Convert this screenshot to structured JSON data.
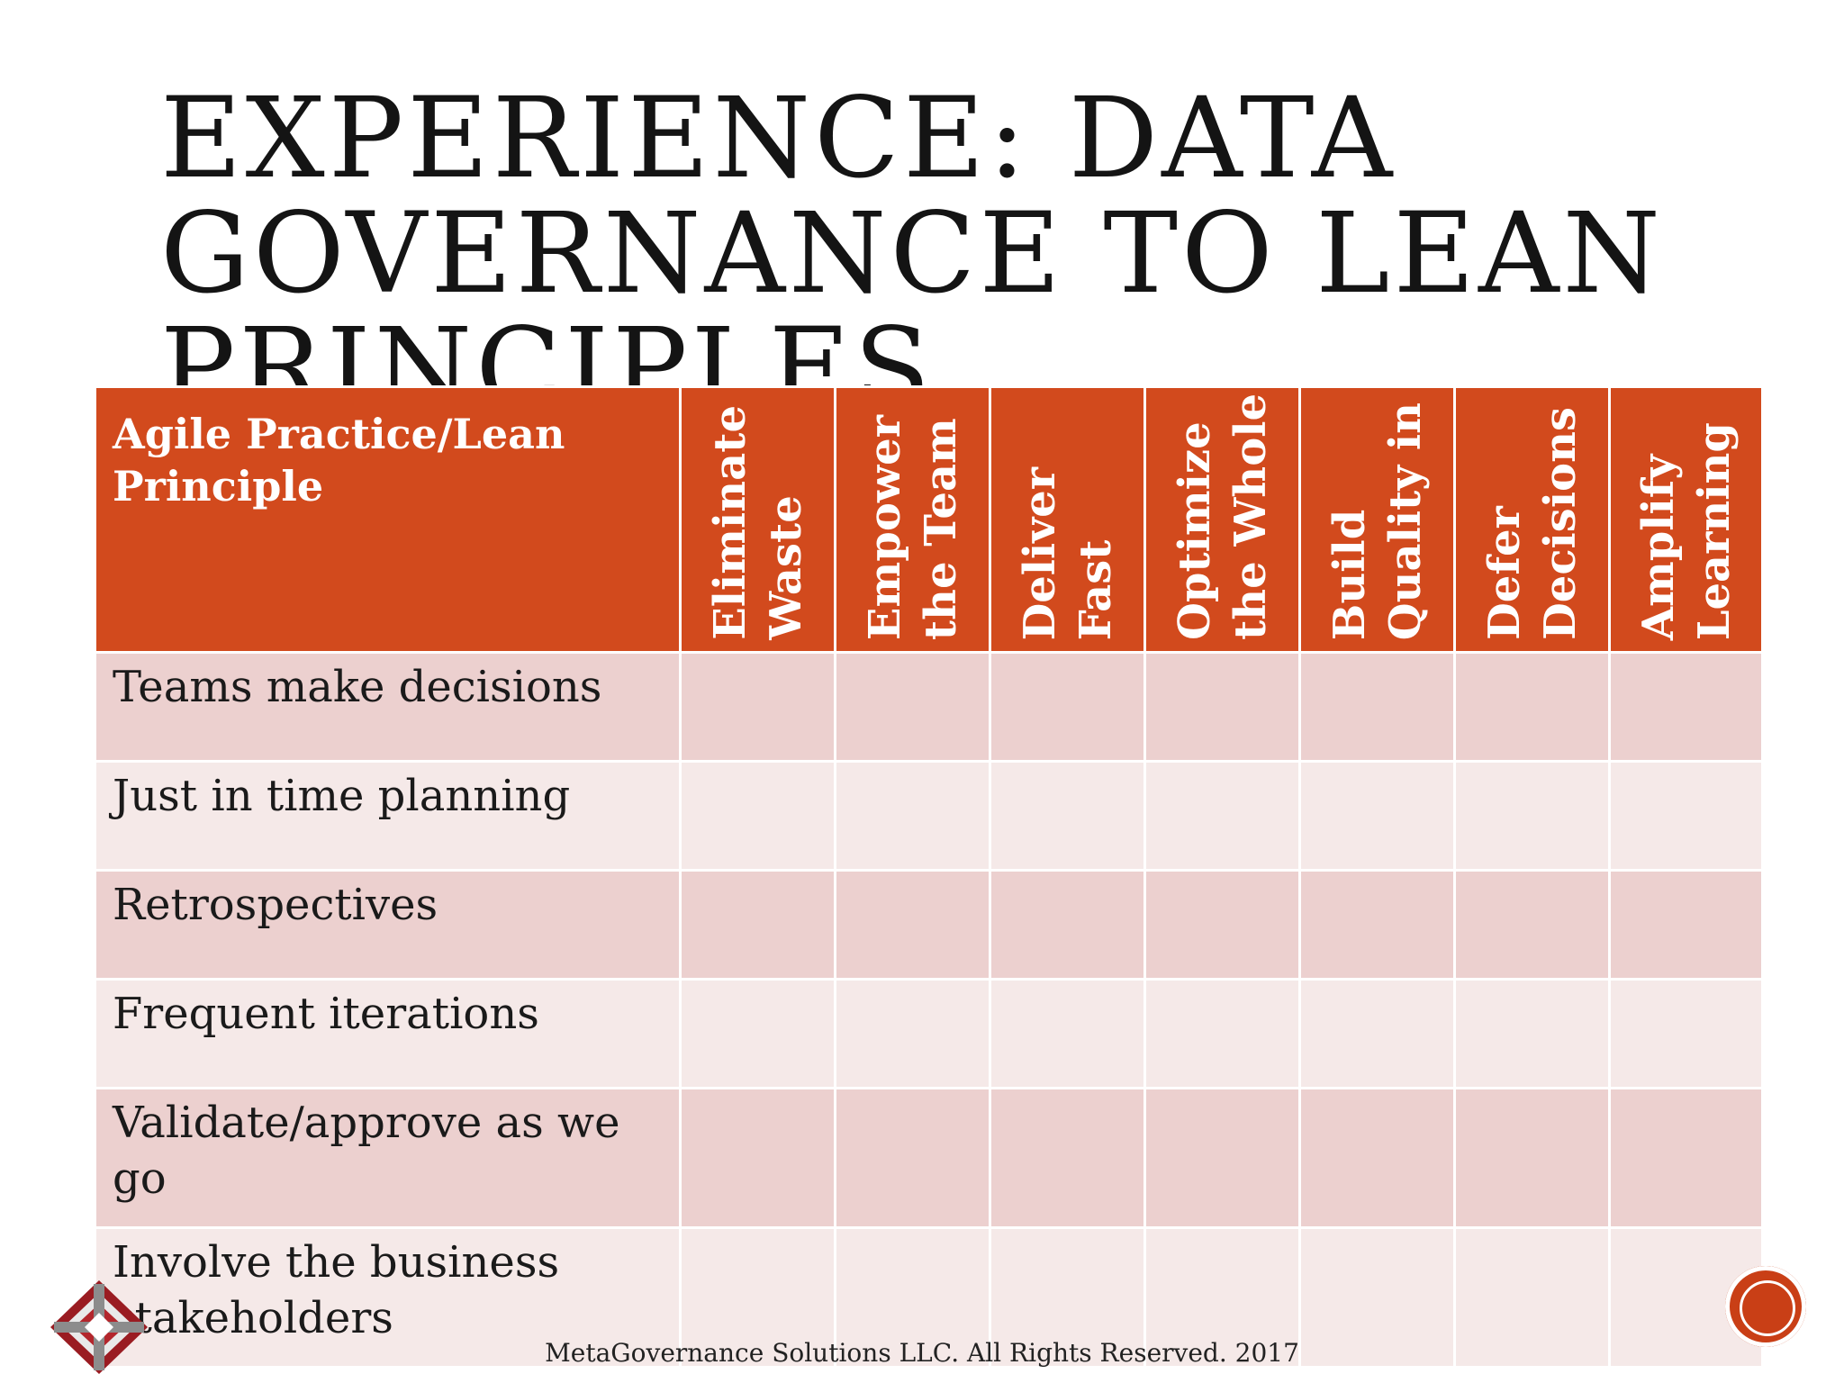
{
  "slide": {
    "title_lines": [
      "EXPERIENCE: DATA",
      "GOVERNANCE TO LEAN",
      "PRINCIPLES"
    ],
    "footer": "MetaGovernance Solutions LLC. All Rights Reserved. 2017"
  },
  "table": {
    "corner_header": "Agile Practice/Lean Principle",
    "principles": [
      "Eliminate Waste",
      "Empower the Team",
      "Deliver Fast",
      "Optimize the Whole",
      "Build Quality in",
      "Defer Decisions",
      "Amplify Learning"
    ],
    "principle_lines": [
      [
        "Eliminate",
        "Waste"
      ],
      [
        "Empower",
        "the Team"
      ],
      [
        "Deliver",
        "Fast"
      ],
      [
        "Optimize",
        "the Whole"
      ],
      [
        "Build",
        "Quality in"
      ],
      [
        "Defer",
        "Decisions"
      ],
      [
        "Amplify",
        "Learning"
      ]
    ],
    "practices": [
      "Teams make decisions",
      "Just in time planning",
      "Retrospectives",
      "Frequent iterations",
      "Validate/approve as we go",
      "Involve the business stakeholders"
    ]
  },
  "colors": {
    "header": "#d24a1d",
    "row_dark": "#ecd0cf",
    "row_light": "#f5e9e8",
    "badge": "#c93f16"
  },
  "icons": {
    "logo": "metagovernance-logo",
    "nav": "slide-nav-badge"
  }
}
